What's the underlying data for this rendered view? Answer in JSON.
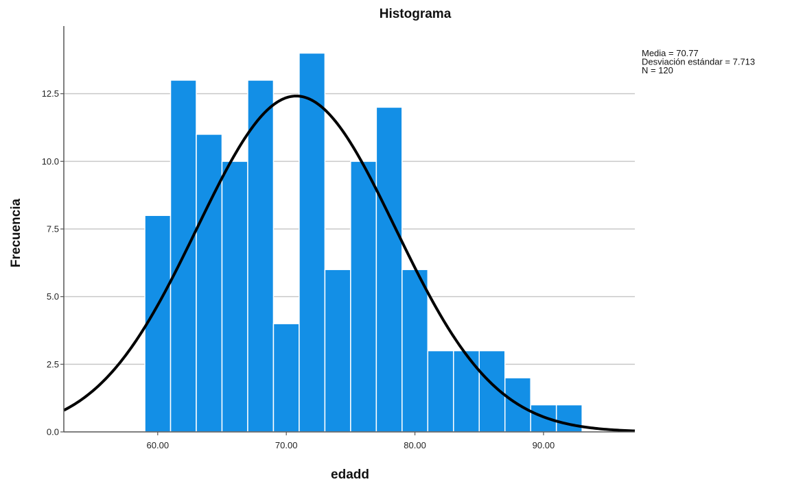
{
  "chart_data": {
    "type": "bar",
    "title": "Histograma",
    "xlabel": "edadd",
    "ylabel": "Frecuencia",
    "xlim": [
      52.7,
      97.1
    ],
    "ylim": [
      0,
      15
    ],
    "bin_width": 2.0,
    "bins": [
      {
        "start": 59.0,
        "end": 61.0,
        "count": 8
      },
      {
        "start": 61.0,
        "end": 63.0,
        "count": 13
      },
      {
        "start": 63.0,
        "end": 65.0,
        "count": 11
      },
      {
        "start": 65.0,
        "end": 67.0,
        "count": 10
      },
      {
        "start": 67.0,
        "end": 69.0,
        "count": 13
      },
      {
        "start": 69.0,
        "end": 71.0,
        "count": 4
      },
      {
        "start": 71.0,
        "end": 73.0,
        "count": 14
      },
      {
        "start": 73.0,
        "end": 75.0,
        "count": 6
      },
      {
        "start": 75.0,
        "end": 77.0,
        "count": 10
      },
      {
        "start": 77.0,
        "end": 79.0,
        "count": 12
      },
      {
        "start": 79.0,
        "end": 81.0,
        "count": 6
      },
      {
        "start": 81.0,
        "end": 83.0,
        "count": 3
      },
      {
        "start": 83.0,
        "end": 85.0,
        "count": 3
      },
      {
        "start": 85.0,
        "end": 87.0,
        "count": 3
      },
      {
        "start": 87.0,
        "end": 89.0,
        "count": 2
      },
      {
        "start": 89.0,
        "end": 91.0,
        "count": 1
      },
      {
        "start": 91.0,
        "end": 93.0,
        "count": 1
      }
    ],
    "x_ticks": [
      {
        "value": 60,
        "label": "60.00"
      },
      {
        "value": 70,
        "label": "70.00"
      },
      {
        "value": 80,
        "label": "80.00"
      },
      {
        "value": 90,
        "label": "90.00"
      }
    ],
    "y_ticks": [
      {
        "value": 0,
        "label": "0.0"
      },
      {
        "value": 2.5,
        "label": "2.5"
      },
      {
        "value": 5,
        "label": "5.0"
      },
      {
        "value": 7.5,
        "label": "7.5"
      },
      {
        "value": 10,
        "label": "10.0"
      },
      {
        "value": 12.5,
        "label": "12.5"
      }
    ],
    "grid": true,
    "legend_position": "top-right",
    "normal_curve": {
      "mean": 70.77,
      "std": 7.713,
      "n": 120
    },
    "stats_lines": [
      "Media = 70.77",
      "Desviación estándar = 7.713",
      "N = 120"
    ],
    "colors": {
      "bar_fill": "#138fe6",
      "bar_edge": "#ffffff",
      "curve": "#000000",
      "grid": "#c8c8c8",
      "axis": "#555555"
    }
  }
}
